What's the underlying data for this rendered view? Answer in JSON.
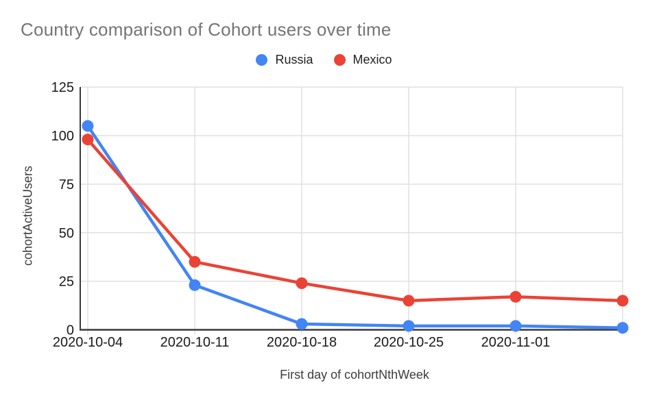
{
  "page": {
    "background": "#ffffff"
  },
  "chart_data": {
    "type": "line",
    "title": "Country comparison of Cohort users over time",
    "xlabel": "First day of cohortNthWeek",
    "ylabel": "cohortActiveUsers",
    "categories": [
      "2020-10-04",
      "2020-10-11",
      "2020-10-18",
      "2020-10-25",
      "2020-11-01",
      ""
    ],
    "series": [
      {
        "name": "Russia",
        "color": "#4285F4",
        "values": [
          105,
          23,
          3,
          2,
          2,
          1
        ]
      },
      {
        "name": "Mexico",
        "color": "#EA4335",
        "values": [
          98,
          35,
          24,
          15,
          17,
          15
        ]
      }
    ],
    "ylim": [
      0,
      125
    ],
    "yticks": [
      0,
      25,
      50,
      75,
      100,
      125
    ],
    "grid": true,
    "legend_position": "top",
    "title_color": "#757575",
    "axis_color": "#3a3a3a",
    "grid_color": "#e0e0e0",
    "tick_color": "#1a1a1a"
  }
}
